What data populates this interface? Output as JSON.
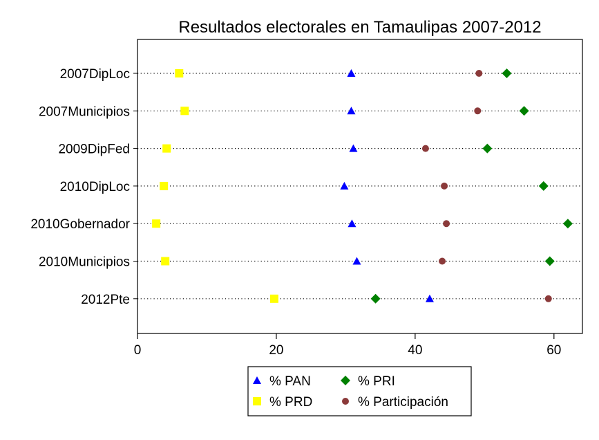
{
  "chart_data": {
    "type": "scatter",
    "title": "Resultados electorales en Tamaulipas 2007-2012",
    "xlabel": "",
    "ylabel": "",
    "xlim": [
      0,
      64.1
    ],
    "xticks": [
      0,
      20,
      40,
      60
    ],
    "grid": "horizontal dotted",
    "legend_position": "bottom",
    "categories": [
      "2007DipLoc",
      "2007Municipios",
      "2009DipFed",
      "2010DipLoc",
      "2010Gobernador",
      "2010Municipios",
      "2012Pte"
    ],
    "series": [
      {
        "name": "% PAN",
        "marker": "triangle",
        "color": "#0000FF",
        "values": [
          30.8,
          30.8,
          31.1,
          29.8,
          30.9,
          31.6,
          42.1
        ]
      },
      {
        "name": "% PRI",
        "marker": "diamond",
        "color": "#008000",
        "values": [
          53.2,
          55.7,
          50.4,
          58.5,
          62.0,
          59.4,
          34.3
        ]
      },
      {
        "name": "% PRD",
        "marker": "square",
        "color": "#FFFF00",
        "values": [
          6.0,
          6.8,
          4.2,
          3.8,
          2.7,
          4.0,
          19.7
        ]
      },
      {
        "name": "% Participación",
        "marker": "circle",
        "color": "#8B3A3A",
        "values": [
          49.2,
          49.0,
          41.5,
          44.2,
          44.5,
          43.9,
          59.2
        ]
      }
    ]
  }
}
